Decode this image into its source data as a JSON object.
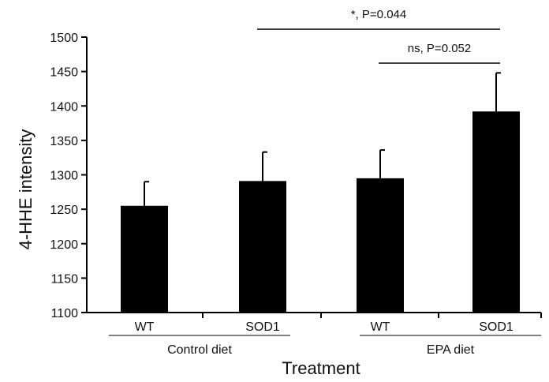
{
  "chart_data": {
    "type": "bar",
    "xlabel": "Treatment",
    "ylabel": "4-HHE intensity",
    "ylim": [
      1100,
      1500
    ],
    "yticks": [
      1100,
      1150,
      1200,
      1250,
      1300,
      1350,
      1400,
      1450,
      1500
    ],
    "categories": [
      "WT",
      "SOD1",
      "WT",
      "SOD1"
    ],
    "groups": [
      {
        "label": "Control diet",
        "categories": [
          0,
          1
        ]
      },
      {
        "label": "EPA diet",
        "categories": [
          2,
          3
        ]
      }
    ],
    "values": [
      1255,
      1291,
      1295,
      1392
    ],
    "errors": [
      35,
      42,
      41,
      56
    ],
    "bar_color": "#000000",
    "grid": false,
    "legend": "none",
    "annotations": [
      {
        "text": "*, P=0.044",
        "from": 1,
        "to": 3,
        "level": "upper"
      },
      {
        "text": "ns, P=0.052",
        "from": 2,
        "to": 3,
        "level": "lower"
      }
    ]
  }
}
